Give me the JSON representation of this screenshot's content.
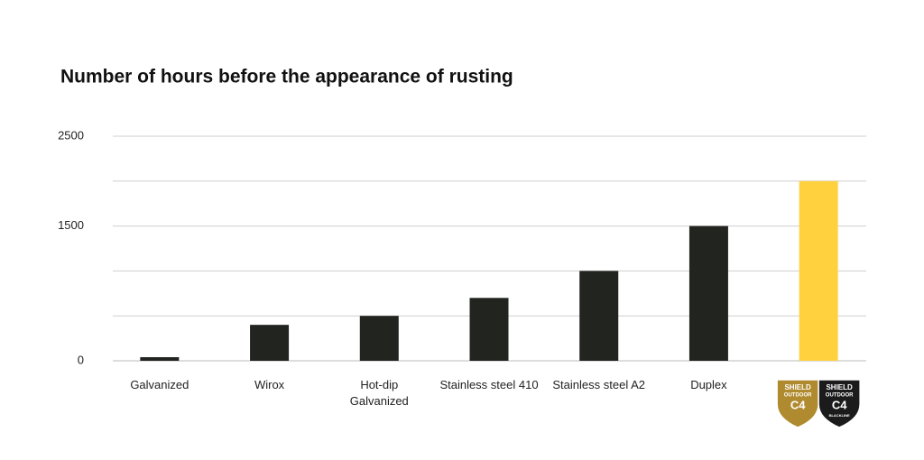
{
  "chart_data": {
    "type": "bar",
    "title": "Number of hours before the appearance of rusting",
    "categories": [
      "Galvanized",
      "Wirox",
      "Hot-dip Galvanized",
      "Stainless steel 410",
      "Stainless steel A2",
      "Duplex",
      null
    ],
    "values": [
      40,
      400,
      500,
      700,
      1000,
      1500,
      2000
    ],
    "colors": [
      "#22241f",
      "#22241f",
      "#22241f",
      "#22241f",
      "#22241f",
      "#22241f",
      "#ffd13f"
    ],
    "ylim": [
      0,
      2500
    ],
    "yticks": [
      0,
      1500,
      2500
    ],
    "grid_values": [
      500,
      1000,
      1500,
      2000,
      2500
    ],
    "grid": true,
    "badges": [
      {
        "color": "#b08a2e",
        "lines": [
          "SHIELD",
          "OUTDOOR",
          "C4"
        ]
      },
      {
        "color": "#1b1b1b",
        "lines": [
          "SHIELD",
          "OUTDOOR",
          "C4",
          "BLACKLINE"
        ]
      }
    ]
  }
}
